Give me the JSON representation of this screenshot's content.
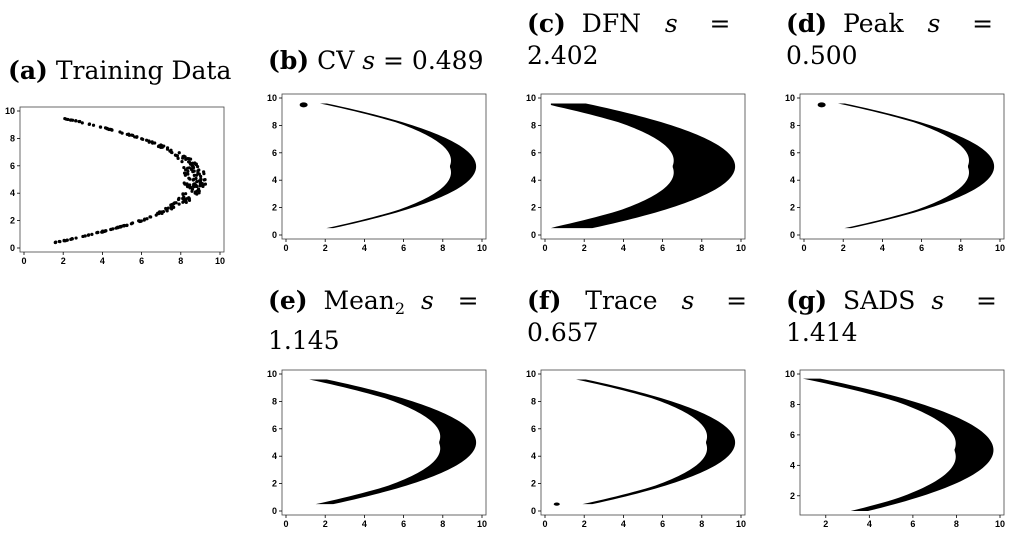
{
  "panels": [
    {
      "id": "a",
      "label": "(a)",
      "title": "Training Data",
      "s_value": "",
      "type": "scatter"
    },
    {
      "id": "b",
      "label": "(b)",
      "title": "CV",
      "s_value": "0.489",
      "type": "region"
    },
    {
      "id": "c",
      "label": "(c)",
      "title": "DFN",
      "s_value": "2.402",
      "type": "region"
    },
    {
      "id": "d",
      "label": "(d)",
      "title": "Peak",
      "s_value": "0.500",
      "type": "region"
    },
    {
      "id": "e",
      "label": "(e)",
      "title": "Mean",
      "title_sub": "2",
      "s_value": "1.145",
      "type": "region"
    },
    {
      "id": "f",
      "label": "(f)",
      "title": "Trace",
      "s_value": "0.657",
      "type": "region"
    },
    {
      "id": "g",
      "label": "(g)",
      "title": "SADS",
      "s_value": "1.414",
      "type": "region"
    }
  ],
  "chart_data": [
    {
      "panel": "a",
      "type": "scatter",
      "xlim": [
        0,
        10
      ],
      "ylim": [
        0,
        10
      ],
      "xticks": [
        "0",
        "2",
        "4",
        "6",
        "8",
        "10"
      ],
      "yticks": [
        "0",
        "2",
        "4",
        "6",
        "8",
        "10"
      ]
    },
    {
      "panel": "b",
      "type": "area",
      "xlim": [
        0,
        10
      ],
      "ylim": [
        0,
        10
      ],
      "xticks": [
        "0",
        "2",
        "4",
        "6",
        "8",
        "10"
      ],
      "yticks": [
        "0",
        "2",
        "4",
        "6",
        "8",
        "10"
      ]
    },
    {
      "panel": "c",
      "type": "area",
      "xlim": [
        0,
        10
      ],
      "ylim": [
        0,
        10
      ],
      "xticks": [
        "0",
        "2",
        "4",
        "6",
        "8",
        "10"
      ],
      "yticks": [
        "0",
        "2",
        "4",
        "6",
        "8",
        "10"
      ]
    },
    {
      "panel": "d",
      "type": "area",
      "xlim": [
        0,
        10
      ],
      "ylim": [
        0,
        10
      ],
      "xticks": [
        "0",
        "2",
        "4",
        "6",
        "8",
        "10"
      ],
      "yticks": [
        "0",
        "2",
        "4",
        "6",
        "8",
        "10"
      ]
    },
    {
      "panel": "e",
      "type": "area",
      "xlim": [
        0,
        10
      ],
      "ylim": [
        0,
        10
      ],
      "xticks": [
        "0",
        "2",
        "4",
        "6",
        "8",
        "10"
      ],
      "yticks": [
        "0",
        "2",
        "4",
        "6",
        "8",
        "10"
      ]
    },
    {
      "panel": "f",
      "type": "area",
      "xlim": [
        0,
        10
      ],
      "ylim": [
        0,
        10
      ],
      "xticks": [
        "0",
        "2",
        "4",
        "6",
        "8",
        "10"
      ],
      "yticks": [
        "0",
        "2",
        "4",
        "6",
        "8",
        "10"
      ]
    },
    {
      "panel": "g",
      "type": "area",
      "xlim": [
        1,
        10
      ],
      "ylim": [
        1,
        10
      ],
      "xticks": [
        "2",
        "4",
        "6",
        "8",
        "10"
      ],
      "yticks": [
        "2",
        "4",
        "6",
        "8",
        "10"
      ]
    }
  ]
}
